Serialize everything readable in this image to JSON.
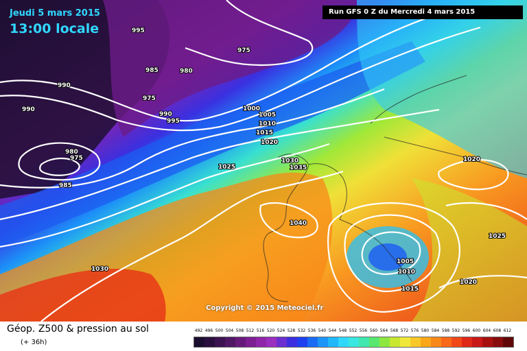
{
  "header": {
    "date_text": "Jeudi 5 mars 2015",
    "time_text": "13:00 locale",
    "run_text": "Run GFS 0 Z du Mercredi 4 mars 2015"
  },
  "map": {
    "copyright": "Copyright © 2015 Meteociel.fr",
    "isobar_labels": [
      {
        "text": "995"
      },
      {
        "text": "975"
      },
      {
        "text": "985"
      },
      {
        "text": "980"
      },
      {
        "text": "990"
      },
      {
        "text": "990"
      },
      {
        "text": "975"
      },
      {
        "text": "990"
      },
      {
        "text": "995"
      },
      {
        "text": "980"
      },
      {
        "text": "975"
      },
      {
        "text": "985"
      },
      {
        "text": "1000"
      },
      {
        "text": "1005"
      },
      {
        "text": "1010"
      },
      {
        "text": "1015"
      },
      {
        "text": "1020"
      },
      {
        "text": "1025"
      },
      {
        "text": "1030"
      },
      {
        "text": "1035"
      },
      {
        "text": "1040"
      },
      {
        "text": "1030"
      },
      {
        "text": "1020"
      },
      {
        "text": "1025"
      },
      {
        "text": "1005"
      },
      {
        "text": "1010"
      },
      {
        "text": "1015"
      },
      {
        "text": "1020"
      }
    ]
  },
  "legend": {
    "title": "Géop. Z500 & pression au sol",
    "subtitle": "(+ 36h)",
    "scale_values": [
      "492",
      "496",
      "500",
      "504",
      "508",
      "512",
      "516",
      "520",
      "524",
      "528",
      "532",
      "536",
      "540",
      "544",
      "548",
      "552",
      "556",
      "560",
      "564",
      "568",
      "572",
      "576",
      "580",
      "584",
      "588",
      "592",
      "596",
      "600",
      "604",
      "608",
      "612"
    ],
    "scale_colors": [
      "#1a0d2e",
      "#2a0f3e",
      "#3d1250",
      "#501764",
      "#661b7a",
      "#7d1f92",
      "#8f25a8",
      "#9a2fc0",
      "#6b2fd0",
      "#3c2ee0",
      "#1f40f0",
      "#1a6cf5",
      "#1c95f8",
      "#20b8fa",
      "#2fd8fb",
      "#38e8e0",
      "#40e8b0",
      "#58e870",
      "#8ce840",
      "#c8e830",
      "#f0e838",
      "#f8c828",
      "#f8a818",
      "#f88818",
      "#f86818",
      "#f04818",
      "#e02818",
      "#c81818",
      "#a81010",
      "#880c0c",
      "#600808"
    ]
  }
}
